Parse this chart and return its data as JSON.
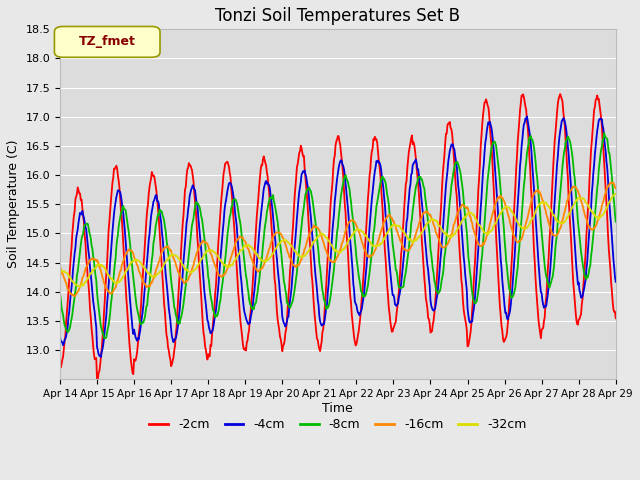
{
  "title": "Tonzi Soil Temperatures Set B",
  "xlabel": "Time",
  "ylabel": "Soil Temperature (C)",
  "ylim": [
    12.5,
    18.5
  ],
  "xlim": [
    0,
    360
  ],
  "fig_bg": "#e8e8e8",
  "plot_bg": "#dcdcdc",
  "legend_label": "TZ_fmet",
  "legend_bg": "#ffffcc",
  "legend_border": "#999900",
  "legend_text_color": "#880000",
  "series_colors": {
    "-2cm": "#ff0000",
    "-4cm": "#0000dd",
    "-8cm": "#00bb00",
    "-16cm": "#ff8800",
    "-32cm": "#dddd00"
  },
  "xtick_labels": [
    "Apr 14",
    "Apr 15",
    "Apr 16",
    "Apr 17",
    "Apr 18",
    "Apr 19",
    "Apr 20",
    "Apr 21",
    "Apr 22",
    "Apr 23",
    "Apr 24",
    "Apr 25",
    "Apr 26",
    "Apr 27",
    "Apr 28",
    "Apr 29"
  ],
  "xtick_positions": [
    0,
    24,
    48,
    72,
    96,
    120,
    144,
    168,
    192,
    216,
    240,
    264,
    288,
    312,
    336,
    360
  ],
  "ytick_vals": [
    13.0,
    13.5,
    14.0,
    14.5,
    15.0,
    15.5,
    16.0,
    16.5,
    17.0,
    17.5,
    18.0,
    18.5
  ],
  "line_width": 1.3,
  "grid_color": "#ffffff",
  "spine_color": "#bbbbbb"
}
